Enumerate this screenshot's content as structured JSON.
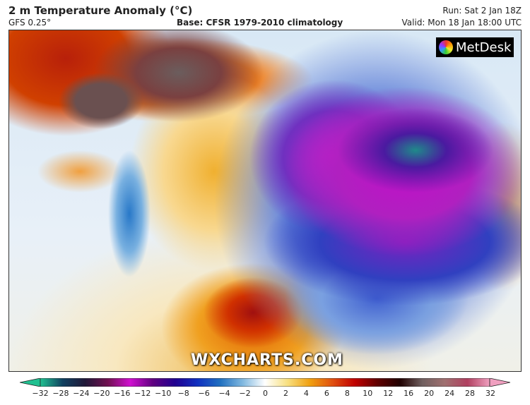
{
  "header": {
    "title": "2 m Temperature Anomaly (°C)",
    "model": "GFS 0.25°",
    "base": "Base: CFSR 1979-2010 climatology",
    "run": "Run: Sat 2 Jan 18Z",
    "valid": "Valid: Mon 18 Jan 18:00 UTC"
  },
  "map": {
    "watermark": "WXCHARTS.COM",
    "logo": "MetDesk",
    "logo_icon": "metdesk-logo-icon"
  },
  "colorbar": {
    "ticks": [
      "−32",
      "−28",
      "−24",
      "−20",
      "−16",
      "−12",
      "−10",
      "−8",
      "−6",
      "−4",
      "−2",
      "0",
      "2",
      "4",
      "6",
      "8",
      "10",
      "12",
      "16",
      "20",
      "24",
      "28",
      "32"
    ],
    "colors": [
      "#20c090",
      "#104060",
      "#201838",
      "#701050",
      "#d010d0",
      "#600080",
      "#200090",
      "#1030c0",
      "#2070c0",
      "#80b8e0",
      "#ffffff",
      "#f8e080",
      "#f0a010",
      "#e05010",
      "#c00000",
      "#600000",
      "#200000",
      "#706060",
      "#a07070",
      "#b04060",
      "#f0a0c0"
    ]
  }
}
